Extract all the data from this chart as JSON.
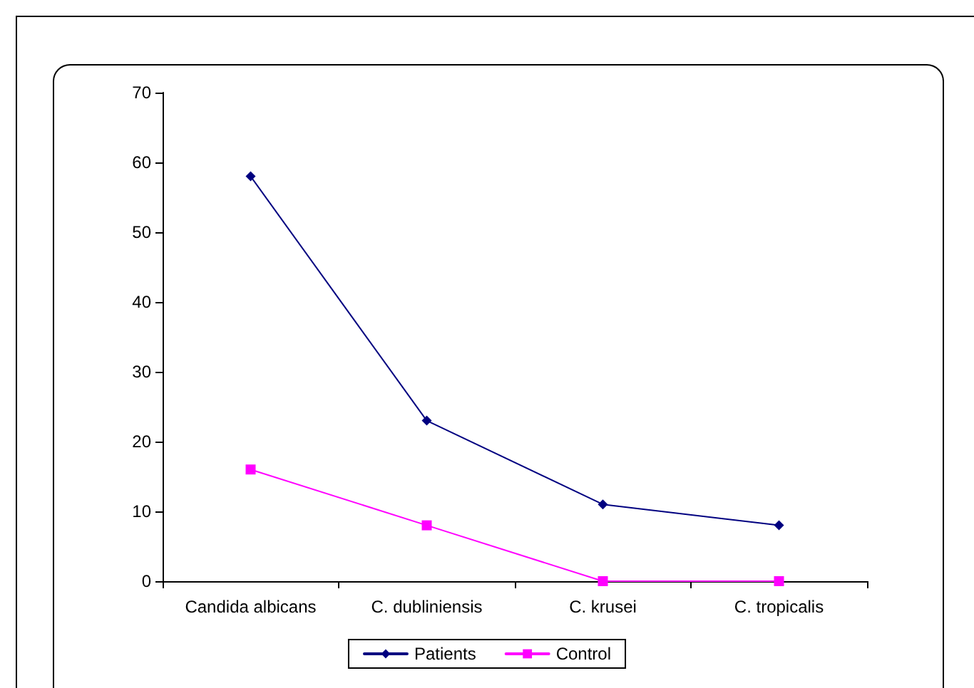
{
  "chart_data": {
    "type": "line",
    "categories": [
      "Candida albicans",
      "C. dubliniensis",
      "C. krusei",
      "C. tropicalis"
    ],
    "series": [
      {
        "name": "Patients",
        "color": "#000080",
        "values": [
          58,
          23,
          11,
          8
        ],
        "marker": "diamond"
      },
      {
        "name": "Control",
        "color": "#ff00ff",
        "values": [
          16,
          8,
          0,
          0
        ],
        "marker": "square"
      }
    ],
    "ylim": [
      0,
      70
    ],
    "yticks": [
      0,
      10,
      20,
      30,
      40,
      50,
      60,
      70
    ],
    "grid": false,
    "legend": "bottom",
    "line_style": "solid"
  }
}
